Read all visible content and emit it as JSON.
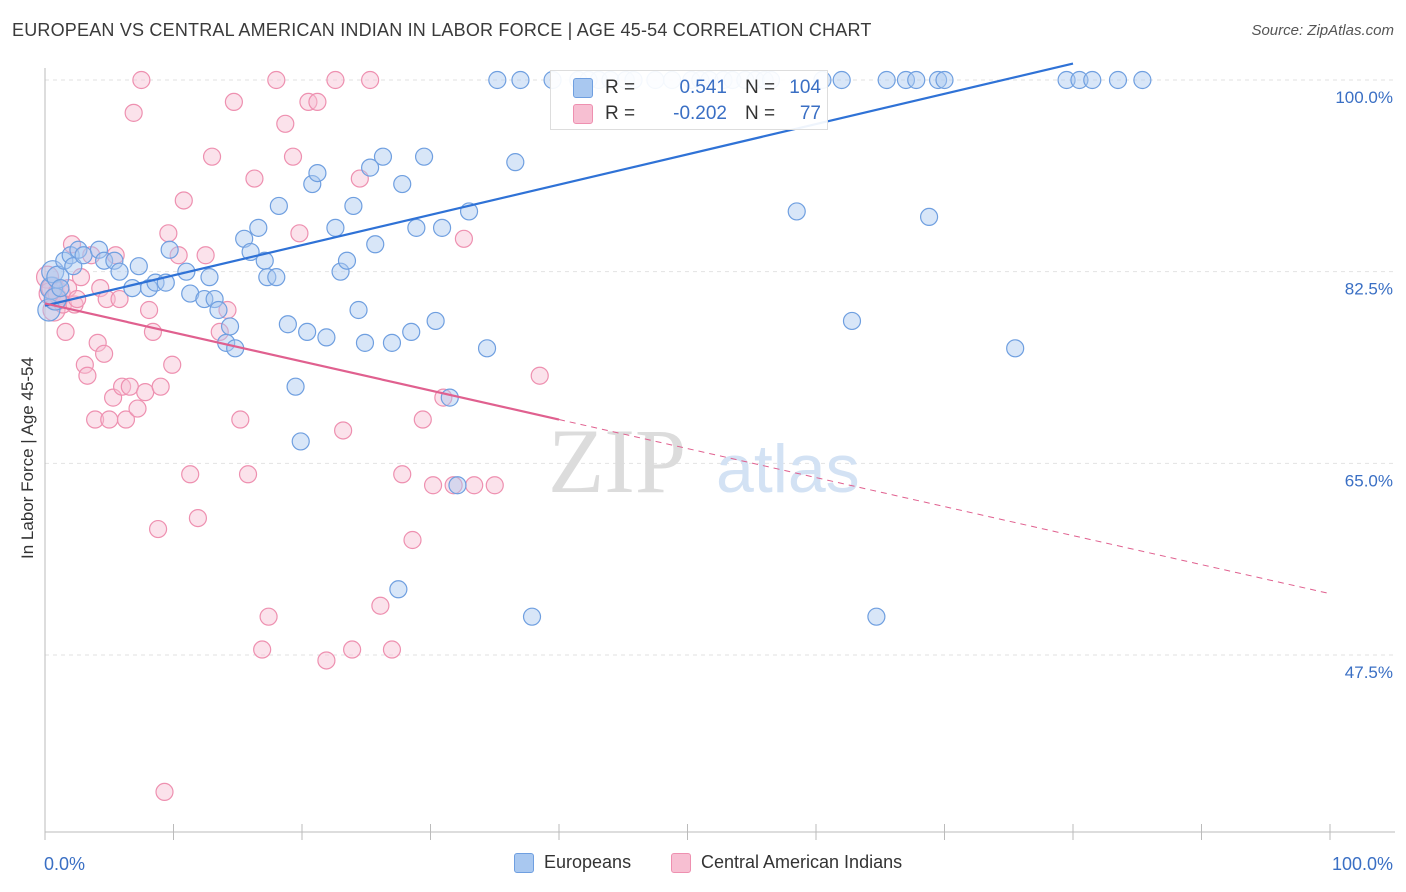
{
  "title": "EUROPEAN VS CENTRAL AMERICAN INDIAN IN LABOR FORCE | AGE 45-54 CORRELATION CHART",
  "source": "Source: ZipAtlas.com",
  "watermark": {
    "zip": "ZIP",
    "atlas": "atlas"
  },
  "stats": {
    "europeans": {
      "r_label": "R =",
      "r_value": "0.541",
      "n_label": "N =",
      "n_value": "104"
    },
    "central": {
      "r_label": "R =",
      "r_value": "-0.202",
      "n_label": "N =",
      "n_value": "77"
    }
  },
  "legend": {
    "europeans": "Europeans",
    "central": "Central American Indians"
  },
  "colors": {
    "blue_fill": "#a9c8f0",
    "blue_stroke": "#6f9fe0",
    "blue_line": "#2f72d6",
    "pink_fill": "#f7bfd2",
    "pink_stroke": "#ee90b0",
    "pink_line": "#e0608f",
    "grid": "#e2e2e2",
    "tick_label": "#3a6fc4"
  },
  "chart_data": {
    "type": "scatter",
    "title": "EUROPEAN VS CENTRAL AMERICAN INDIAN IN LABOR FORCE | AGE 45-54 CORRELATION CHART",
    "xlabel": "",
    "ylabel": "In Labor Force | Age 45-54",
    "xlim": [
      0,
      100
    ],
    "ylim": [
      31.0,
      102.0
    ],
    "x_tick_labels": [
      "0.0%",
      "100.0%"
    ],
    "y_ticks": [
      47.5,
      65.0,
      82.5,
      100.0
    ],
    "y_tick_labels": [
      "47.5%",
      "65.0%",
      "82.5%",
      "100.0%"
    ],
    "grid": true,
    "legend_position": "bottom-center",
    "series": [
      {
        "name": "Europeans",
        "color": "#6f9fe0",
        "trend": {
          "x": [
            0,
            80
          ],
          "y": [
            79.4,
            101.5
          ],
          "dashed_to": 80
        },
        "points": [
          [
            0.3,
            79
          ],
          [
            0.5,
            81
          ],
          [
            0.6,
            82.5
          ],
          [
            0.8,
            80
          ],
          [
            1.0,
            82
          ],
          [
            1.2,
            81
          ],
          [
            1.5,
            83.5
          ],
          [
            2.0,
            84
          ],
          [
            2.2,
            83
          ],
          [
            2.6,
            84.5
          ],
          [
            3.0,
            84
          ],
          [
            4.2,
            84.5
          ],
          [
            4.6,
            83.5
          ],
          [
            5.4,
            83.5
          ],
          [
            5.8,
            82.5
          ],
          [
            6.8,
            81
          ],
          [
            7.3,
            83
          ],
          [
            8.1,
            81
          ],
          [
            8.6,
            81.5
          ],
          [
            9.4,
            81.5
          ],
          [
            9.7,
            84.5
          ],
          [
            11.0,
            82.5
          ],
          [
            11.3,
            80.5
          ],
          [
            12.4,
            80
          ],
          [
            12.8,
            82
          ],
          [
            13.2,
            80
          ],
          [
            13.5,
            79
          ],
          [
            14.1,
            76
          ],
          [
            14.4,
            77.5
          ],
          [
            14.8,
            75.5
          ],
          [
            15.5,
            85.5
          ],
          [
            16.0,
            84.3
          ],
          [
            16.6,
            86.5
          ],
          [
            17.1,
            83.5
          ],
          [
            17.3,
            82
          ],
          [
            18.0,
            82
          ],
          [
            18.2,
            88.5
          ],
          [
            18.9,
            77.7
          ],
          [
            19.5,
            72
          ],
          [
            19.9,
            67
          ],
          [
            20.4,
            77
          ],
          [
            20.8,
            90.5
          ],
          [
            21.2,
            91.5
          ],
          [
            21.9,
            76.5
          ],
          [
            22.6,
            86.5
          ],
          [
            23.0,
            82.5
          ],
          [
            23.5,
            83.5
          ],
          [
            24.0,
            88.5
          ],
          [
            24.4,
            79
          ],
          [
            24.9,
            76
          ],
          [
            25.3,
            92
          ],
          [
            25.7,
            85
          ],
          [
            26.3,
            93
          ],
          [
            27.0,
            76
          ],
          [
            27.5,
            53.5
          ],
          [
            27.8,
            90.5
          ],
          [
            28.5,
            77
          ],
          [
            28.9,
            86.5
          ],
          [
            29.5,
            93
          ],
          [
            30.4,
            78
          ],
          [
            30.9,
            86.5
          ],
          [
            31.5,
            71
          ],
          [
            32.1,
            63
          ],
          [
            33.0,
            88
          ],
          [
            34.4,
            75.5
          ],
          [
            35.2,
            100
          ],
          [
            36.6,
            92.5
          ],
          [
            37.0,
            100
          ],
          [
            37.9,
            51
          ],
          [
            39.5,
            100
          ],
          [
            41.5,
            100
          ],
          [
            42.3,
            100
          ],
          [
            43.1,
            100
          ],
          [
            44.0,
            100
          ],
          [
            45.2,
            100
          ],
          [
            45.8,
            100
          ],
          [
            47.5,
            100
          ],
          [
            48.8,
            100
          ],
          [
            50.3,
            100
          ],
          [
            51.0,
            100
          ],
          [
            51.7,
            100
          ],
          [
            52.8,
            100
          ],
          [
            53.5,
            100
          ],
          [
            54.5,
            100
          ],
          [
            55.3,
            100
          ],
          [
            56.0,
            100
          ],
          [
            56.5,
            100
          ],
          [
            58.5,
            88
          ],
          [
            60.5,
            100
          ],
          [
            62.0,
            100
          ],
          [
            62.8,
            78
          ],
          [
            64.7,
            51
          ],
          [
            65.5,
            100
          ],
          [
            67.0,
            100
          ],
          [
            67.8,
            100
          ],
          [
            68.8,
            87.5
          ],
          [
            69.5,
            100
          ],
          [
            70.0,
            100
          ],
          [
            75.5,
            75.5
          ],
          [
            79.5,
            100
          ],
          [
            80.5,
            100
          ],
          [
            81.5,
            100
          ],
          [
            83.5,
            100
          ],
          [
            85.4,
            100
          ]
        ]
      },
      {
        "name": "Central American Indians",
        "color": "#ee90b0",
        "trend": {
          "x": [
            0,
            40,
            100
          ],
          "y": [
            79.6,
            69.0,
            53.1
          ],
          "dashed_from": 40
        },
        "points": [
          [
            0.2,
            82
          ],
          [
            0.4,
            80.5
          ],
          [
            0.6,
            81
          ],
          [
            0.7,
            79
          ],
          [
            0.9,
            80
          ],
          [
            1.1,
            80.5
          ],
          [
            1.4,
            79.5
          ],
          [
            1.6,
            77
          ],
          [
            1.8,
            81
          ],
          [
            2.1,
            85
          ],
          [
            2.3,
            79.5
          ],
          [
            2.5,
            80
          ],
          [
            2.8,
            82
          ],
          [
            3.1,
            74
          ],
          [
            3.3,
            73
          ],
          [
            3.6,
            84
          ],
          [
            3.9,
            69
          ],
          [
            4.1,
            76
          ],
          [
            4.3,
            81
          ],
          [
            4.6,
            75
          ],
          [
            4.8,
            80
          ],
          [
            5.0,
            69
          ],
          [
            5.3,
            71
          ],
          [
            5.5,
            84
          ],
          [
            5.8,
            80
          ],
          [
            6.0,
            72
          ],
          [
            6.3,
            69
          ],
          [
            6.6,
            72
          ],
          [
            6.9,
            97
          ],
          [
            7.2,
            70
          ],
          [
            7.5,
            100
          ],
          [
            7.8,
            71.5
          ],
          [
            8.1,
            79
          ],
          [
            8.4,
            77
          ],
          [
            8.8,
            59
          ],
          [
            9.0,
            72
          ],
          [
            9.3,
            35
          ],
          [
            9.6,
            86
          ],
          [
            9.9,
            74
          ],
          [
            10.4,
            84
          ],
          [
            10.8,
            89
          ],
          [
            11.3,
            64
          ],
          [
            11.9,
            60
          ],
          [
            12.5,
            84
          ],
          [
            13.0,
            93
          ],
          [
            13.6,
            77
          ],
          [
            14.2,
            79
          ],
          [
            14.7,
            98
          ],
          [
            15.2,
            69
          ],
          [
            15.8,
            64
          ],
          [
            16.3,
            91
          ],
          [
            16.9,
            48
          ],
          [
            17.4,
            51
          ],
          [
            18.0,
            100
          ],
          [
            18.7,
            96
          ],
          [
            19.3,
            93
          ],
          [
            19.8,
            86
          ],
          [
            20.5,
            98
          ],
          [
            21.2,
            98
          ],
          [
            21.9,
            47
          ],
          [
            22.6,
            100
          ],
          [
            23.2,
            68
          ],
          [
            23.9,
            48
          ],
          [
            24.5,
            91
          ],
          [
            25.3,
            100
          ],
          [
            26.1,
            52
          ],
          [
            27.0,
            48
          ],
          [
            27.8,
            64
          ],
          [
            28.6,
            58
          ],
          [
            29.4,
            69
          ],
          [
            30.2,
            63
          ],
          [
            31.0,
            71
          ],
          [
            31.8,
            63
          ],
          [
            32.6,
            85.5
          ],
          [
            33.4,
            63
          ],
          [
            35.0,
            63
          ],
          [
            38.5,
            73
          ]
        ]
      }
    ]
  }
}
